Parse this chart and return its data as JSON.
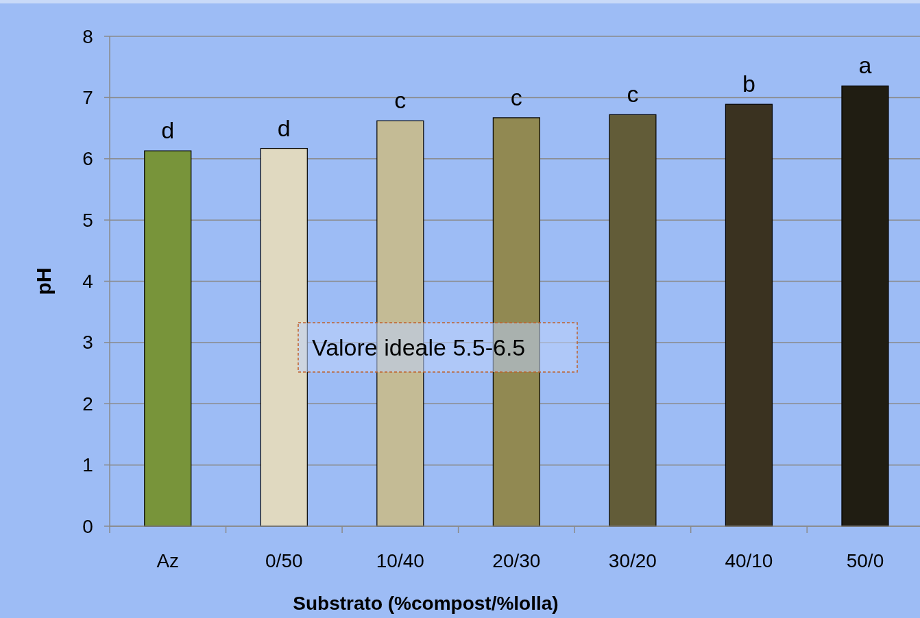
{
  "chart_data": {
    "type": "bar",
    "xlabel": "Substrato (%compost/%lolla)",
    "ylabel": "pH",
    "categories": [
      "Az",
      "0/50",
      "10/40",
      "20/30",
      "30/20",
      "40/10",
      "50/0"
    ],
    "values": [
      6.13,
      6.17,
      6.62,
      6.67,
      6.72,
      6.89,
      7.19
    ],
    "colors": [
      "#78943a",
      "#e0d9c0",
      "#c4bb95",
      "#918952",
      "#625c38",
      "#3a3220",
      "#201d12"
    ],
    "ylim": [
      0,
      8
    ],
    "yticks": [
      0,
      1,
      2,
      3,
      4,
      5,
      6,
      7,
      8
    ],
    "grid": "y",
    "annotations": [
      {
        "text": "d",
        "x": "Az",
        "y": 6.13
      },
      {
        "text": "d",
        "x": "0/50",
        "y": 6.17
      },
      {
        "text": "c",
        "x": "10/40",
        "y": 6.62
      },
      {
        "text": "c",
        "x": "20/30",
        "y": 6.67
      },
      {
        "text": "c",
        "x": "30/20",
        "y": 6.72
      },
      {
        "text": "b",
        "x": "40/10",
        "y": 6.89
      },
      {
        "text": "a",
        "x": "50/0",
        "y": 7.19
      },
      "Valore ideale 5.5-6.5"
    ]
  }
}
